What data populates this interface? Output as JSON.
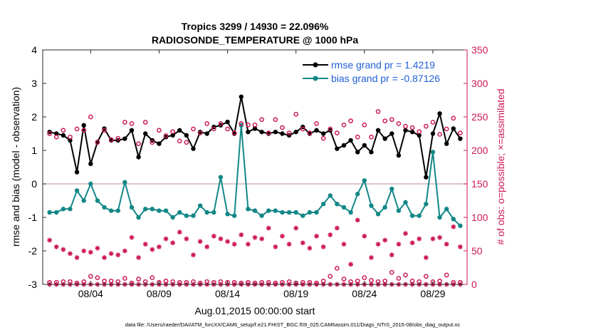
{
  "chart_data": {
    "type": "line",
    "title": "Tropics 3299 / 14930 = 22.096%",
    "subtitle": "RADIOSONDE_TEMPERATURE @ 1000 hPa",
    "xlabel": "Aug.01,2015 00:00:00 start",
    "ylabel": "rmse and bias (model - observation)",
    "y2label": "# of obs: o=possible; ×=assimilated",
    "footnote": "data file: /Users/raeder/DAI/ATM_forcXX/CAM6_setup/f.e21.FHIST_BGC.f09_025.CAM6assim.011/Diags_NTrS_2015-08/obs_diag_output.nc",
    "xlim": [
      0.5,
      31.5
    ],
    "ylim": [
      -3,
      4
    ],
    "y2lim": [
      0,
      350
    ],
    "xticks": [
      {
        "value": 4,
        "label": "08/04"
      },
      {
        "value": 9,
        "label": "08/09"
      },
      {
        "value": 14,
        "label": "08/14"
      },
      {
        "value": 19,
        "label": "08/19"
      },
      {
        "value": 24,
        "label": "08/24"
      },
      {
        "value": 29,
        "label": "08/29"
      }
    ],
    "yticks": [
      {
        "value": -3,
        "label": "-3"
      },
      {
        "value": -2,
        "label": "-2"
      },
      {
        "value": -1,
        "label": "-1"
      },
      {
        "value": 0,
        "label": "0"
      },
      {
        "value": 1,
        "label": "1"
      },
      {
        "value": 2,
        "label": "2"
      },
      {
        "value": 3,
        "label": "3"
      },
      {
        "value": 4,
        "label": "4"
      }
    ],
    "y2ticks": [
      {
        "value": 0,
        "label": "0"
      },
      {
        "value": 50,
        "label": "50"
      },
      {
        "value": 100,
        "label": "100"
      },
      {
        "value": 150,
        "label": "150"
      },
      {
        "value": 200,
        "label": "200"
      },
      {
        "value": 250,
        "label": "250"
      },
      {
        "value": 300,
        "label": "300"
      },
      {
        "value": 350,
        "label": "350"
      }
    ],
    "legend_position": "top-right",
    "colors": {
      "rmse": "#000000",
      "bias": "#138787",
      "obs": "#cc1a55",
      "legend_text": "#1f5fd6",
      "zero_line": "#c4a8ad"
    },
    "x": [
      1.0,
      1.5,
      2.0,
      2.5,
      3.0,
      3.5,
      4.0,
      4.5,
      5.0,
      5.5,
      6.0,
      6.5,
      7.0,
      7.5,
      8.0,
      8.5,
      9.0,
      9.5,
      10.0,
      10.5,
      11.0,
      11.5,
      12.0,
      12.5,
      13.0,
      13.5,
      14.0,
      14.5,
      15.0,
      15.5,
      16.0,
      16.5,
      17.0,
      17.5,
      18.0,
      18.5,
      19.0,
      19.5,
      20.0,
      20.5,
      21.0,
      21.5,
      22.0,
      22.5,
      23.0,
      23.5,
      24.0,
      24.5,
      25.0,
      25.5,
      26.0,
      26.5,
      27.0,
      27.5,
      28.0,
      28.5,
      29.0,
      29.5,
      30.0,
      30.5,
      31.0
    ],
    "series": [
      {
        "name": "rmse grand pr = 1.4219",
        "axis": "left",
        "marker": "filled-circle",
        "values": [
          1.55,
          1.5,
          1.45,
          1.3,
          0.35,
          1.75,
          0.6,
          1.25,
          1.65,
          1.3,
          1.3,
          1.35,
          1.6,
          0.8,
          1.5,
          1.3,
          1.2,
          1.4,
          1.45,
          1.6,
          1.45,
          1.05,
          1.55,
          1.5,
          1.7,
          1.75,
          1.85,
          1.5,
          2.6,
          1.55,
          1.65,
          1.55,
          1.5,
          1.55,
          1.5,
          1.45,
          1.55,
          1.7,
          1.5,
          1.6,
          1.5,
          1.6,
          1.05,
          1.15,
          1.3,
          0.95,
          1.15,
          0.95,
          1.6,
          1.35,
          1.5,
          0.85,
          1.6,
          1.55,
          1.45,
          0.2,
          1.5,
          2.1,
          1.2,
          1.65,
          1.35
        ]
      },
      {
        "name": "bias grand pr = -0.87126",
        "axis": "left",
        "marker": "filled-circle",
        "values": [
          -0.85,
          -0.85,
          -0.75,
          -0.75,
          -0.2,
          -0.5,
          0,
          -0.5,
          -0.7,
          -0.8,
          -0.8,
          0.05,
          -0.7,
          -1.0,
          -0.75,
          -0.75,
          -0.8,
          -0.8,
          -1.0,
          -0.85,
          -0.95,
          -0.95,
          -0.65,
          -0.85,
          -0.85,
          0.2,
          -0.9,
          -0.95,
          1.75,
          -0.75,
          -0.8,
          -0.95,
          -0.8,
          -0.8,
          -0.85,
          -0.85,
          -0.85,
          -0.95,
          -0.85,
          -0.85,
          -0.6,
          -0.35,
          -0.6,
          -0.7,
          -0.85,
          -0.3,
          0.1,
          -0.65,
          -0.9,
          -0.7,
          -0.15,
          -0.8,
          -0.55,
          -0.95,
          -0.95,
          -0.6,
          0.95,
          -1.0,
          -0.75,
          -1.05,
          -1.25
        ]
      },
      {
        "name": "# of obs possible",
        "axis": "right",
        "marker": "open-circle",
        "values": [
          225,
          220,
          230,
          220,
          232,
          230,
          250,
          212,
          230,
          216,
          218,
          242,
          240,
          210,
          242,
          212,
          230,
          222,
          228,
          214,
          212,
          232,
          226,
          240,
          232,
          240,
          232,
          226,
          240,
          238,
          238,
          246,
          226,
          246,
          234,
          226,
          254,
          232,
          226,
          240,
          218,
          232,
          226,
          238,
          244,
          220,
          238,
          220,
          258,
          244,
          246,
          240,
          236,
          234,
          228,
          236,
          242,
          224,
          232,
          248,
          226
        ]
      },
      {
        "name": "# of obs possible (low)",
        "axis": "right",
        "marker": "open-circle",
        "values": [
          3,
          3,
          4,
          4,
          2,
          4,
          12,
          10,
          5,
          5,
          4,
          9,
          2,
          8,
          4,
          10,
          3,
          5,
          4,
          3,
          3,
          4,
          2,
          4,
          3,
          4,
          3,
          3,
          2,
          3,
          2,
          3,
          3,
          2,
          3,
          4,
          2,
          3,
          3,
          2,
          5,
          12,
          24,
          8,
          4,
          5,
          10,
          6,
          4,
          5,
          18,
          9,
          14,
          5,
          4,
          12,
          4,
          5,
          14,
          3,
          3
        ]
      },
      {
        "name": "# of obs assimilated",
        "axis": "right",
        "marker": "asterisk",
        "values": [
          66,
          56,
          52,
          46,
          40,
          50,
          48,
          54,
          40,
          46,
          44,
          50,
          70,
          40,
          60,
          52,
          56,
          68,
          62,
          78,
          68,
          44,
          64,
          56,
          72,
          68,
          64,
          60,
          74,
          60,
          70,
          68,
          84,
          56,
          72,
          60,
          84,
          62,
          54,
          72,
          56,
          74,
          84,
          60,
          30,
          96,
          72,
          40,
          60,
          66,
          44,
          60,
          76,
          62,
          68,
          40,
          68,
          70,
          60,
          86,
          56
        ]
      },
      {
        "name": "# of obs assimilated (low)",
        "axis": "right",
        "marker": "asterisk",
        "values": [
          0,
          0,
          0,
          0,
          0,
          0,
          0,
          0,
          0,
          0,
          0,
          0,
          0,
          0,
          0,
          0,
          0,
          0,
          0,
          0,
          0,
          0,
          0,
          0,
          0,
          0,
          0,
          0,
          0,
          0,
          0,
          0,
          0,
          0,
          0,
          0,
          0,
          0,
          0,
          0,
          0,
          0,
          0,
          0,
          0,
          0,
          0,
          0,
          0,
          0,
          0,
          0,
          0,
          0,
          0,
          0,
          0,
          0,
          0,
          0,
          0
        ]
      }
    ]
  }
}
